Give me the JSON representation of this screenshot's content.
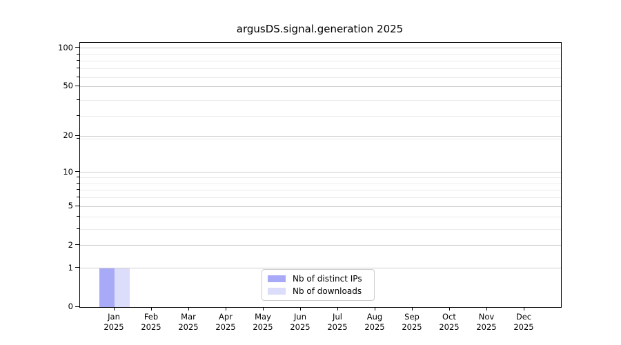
{
  "title": "argusDS.signal.generation 2025",
  "chart_data": {
    "type": "bar",
    "title": "argusDS.signal.generation 2025",
    "categories": [
      "Jan 2025",
      "Feb 2025",
      "Mar 2025",
      "Apr 2025",
      "May 2025",
      "Jun 2025",
      "Jul 2025",
      "Aug 2025",
      "Sep 2025",
      "Oct 2025",
      "Nov 2025",
      "Dec 2025"
    ],
    "series": [
      {
        "name": "Nb of distinct IPs",
        "color": "#a9aaf7",
        "values": [
          1,
          0,
          0,
          0,
          0,
          0,
          0,
          0,
          0,
          0,
          0,
          0
        ]
      },
      {
        "name": "Nb of downloads",
        "color": "#dcddfa",
        "values": [
          1,
          0,
          0,
          0,
          0,
          0,
          0,
          0,
          0,
          0,
          0,
          0
        ]
      }
    ],
    "xlabel": "",
    "ylabel": "",
    "yscale": "log1p",
    "ylim": [
      0,
      110
    ],
    "yticks": [
      0,
      1,
      2,
      5,
      10,
      20,
      50,
      100
    ],
    "ytick_labels": [
      "0",
      "1",
      "2",
      "5",
      "10",
      "20",
      "50",
      "100"
    ],
    "yticks_minor": [
      3,
      4,
      6,
      7,
      8,
      9,
      19,
      29,
      39,
      59,
      69,
      79,
      89
    ],
    "grid": "horizontal",
    "legend_position": "lower center"
  },
  "legend": {
    "items": [
      {
        "label": "Nb of distinct IPs",
        "color": "#a9aaf7"
      },
      {
        "label": "Nb of downloads",
        "color": "#dcddfa"
      }
    ]
  },
  "colors": {
    "spine": "#000000",
    "grid_major": "#cccccc",
    "grid_minor": "#eaeaea",
    "background": "#ffffff",
    "bar_distinct_ips": "#a9aaf7",
    "bar_downloads": "#dcddfa",
    "legend_border": "#cccccc"
  }
}
